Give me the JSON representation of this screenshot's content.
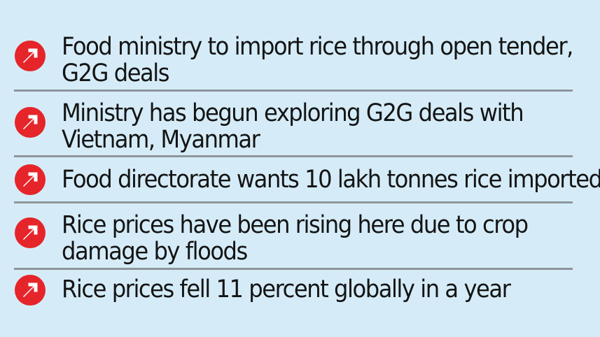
{
  "items": [
    {
      "line1": "Food ministry to import rice through open tender,",
      "line2": "G2G deals",
      "icon": "arrow-up-right-icon"
    },
    {
      "line1": "Ministry has begun exploring G2G deals with",
      "line2": "Vietnam, Myanmar",
      "icon": "arrow-up-right-icon"
    },
    {
      "line1": "Food directorate wants 10 lakh tonnes rice imported",
      "icon": "arrow-up-right-icon"
    },
    {
      "line1": "Rice prices have been rising here due to crop",
      "line2": "damage by floods",
      "icon": "arrow-up-right-icon"
    },
    {
      "line1": "Rice prices fell 11 percent globally in a year",
      "icon": "arrow-up-right-icon"
    }
  ],
  "colors": {
    "background": "#d5ecf8",
    "icon_red": "#e5252a",
    "text": "#141414",
    "divider": "#8d969b"
  }
}
